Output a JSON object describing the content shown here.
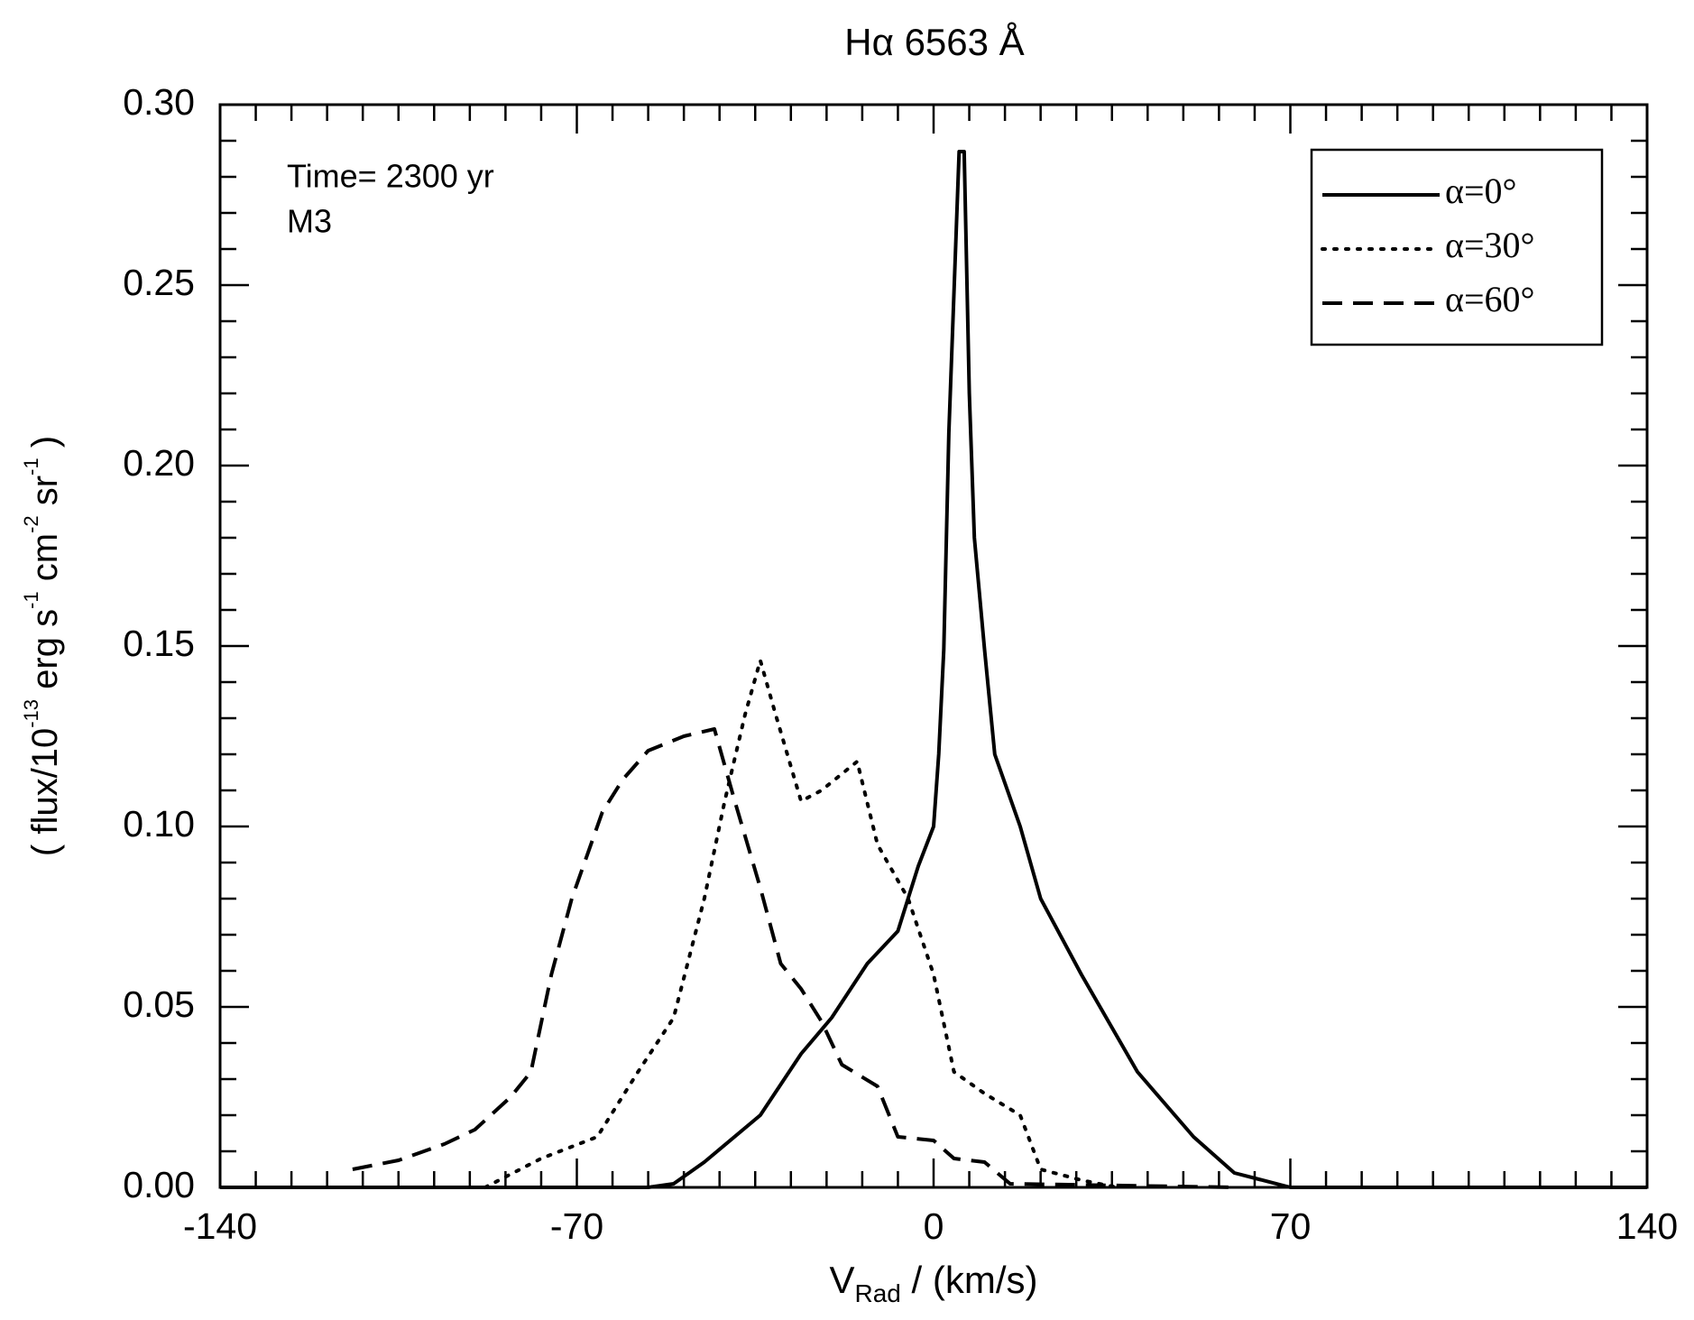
{
  "chart_data": {
    "type": "line",
    "title": "Hα 6563 Å",
    "xlabel": [
      "V",
      "Rad",
      " / (km/s)"
    ],
    "ylabel": [
      "( flux/10",
      "-13",
      " erg s",
      "-1",
      " cm",
      "-2",
      " sr",
      "-1",
      "  )"
    ],
    "annotations": [
      "Time= 2300 yr",
      "M3"
    ],
    "xlim": [
      -140,
      140
    ],
    "ylim": [
      0,
      0.3
    ],
    "xticks": [
      -140,
      -70,
      0,
      70,
      140
    ],
    "yticks": [
      {
        "value": 0,
        "label": "0.00"
      },
      {
        "value": 0.05,
        "label": "0.05"
      },
      {
        "value": 0.1,
        "label": "0.10"
      },
      {
        "value": 0.15,
        "label": "0.15"
      },
      {
        "value": 0.2,
        "label": "0.20"
      },
      {
        "value": 0.25,
        "label": "0.25"
      },
      {
        "value": 0.3,
        "label": "0.30"
      }
    ],
    "xminorticks": [
      -133,
      -126,
      -119,
      -112,
      -105,
      -98,
      -91,
      -84,
      -77,
      -63,
      -56,
      -49,
      -42,
      -35,
      -28,
      -21,
      -14,
      -7,
      7,
      14,
      21,
      28,
      35,
      42,
      49,
      56,
      63,
      77,
      84,
      91,
      98,
      105,
      112,
      119,
      126,
      133
    ],
    "yminorticks": [
      0.01,
      0.02,
      0.03,
      0.04,
      0.06,
      0.07,
      0.08,
      0.09,
      0.11,
      0.12,
      0.13,
      0.14,
      0.16,
      0.17,
      0.18,
      0.19,
      0.21,
      0.22,
      0.23,
      0.24,
      0.26,
      0.27,
      0.28,
      0.29
    ],
    "legend": "upper right",
    "series": [
      {
        "name": "α=0°",
        "color": "#000000",
        "linestyle": "solid",
        "x": [
          -140,
          -56,
          -51,
          -45,
          -34,
          -26,
          -20,
          -13,
          -7,
          -3,
          0,
          1,
          2,
          3,
          5,
          6,
          7,
          8,
          10,
          12,
          17,
          21,
          29,
          40,
          51,
          59,
          70,
          140
        ],
        "values": [
          0,
          0,
          0.001,
          0.007,
          0.02,
          0.037,
          0.047,
          0.062,
          0.071,
          0.089,
          0.1,
          0.12,
          0.149,
          0.209,
          0.287,
          0.287,
          0.22,
          0.18,
          0.149,
          0.12,
          0.1,
          0.08,
          0.059,
          0.032,
          0.014,
          0.004,
          0,
          0
        ]
      },
      {
        "name": "α=30°",
        "color": "#000000",
        "linestyle": "dotted",
        "x": [
          -88,
          -77,
          -66,
          -58,
          -51,
          -45,
          -41,
          -37,
          -34,
          -31,
          -26,
          -22,
          -15,
          -11,
          -5,
          0,
          4,
          10,
          17,
          21,
          29,
          36
        ],
        "values": [
          0,
          0.008,
          0.014,
          0.032,
          0.047,
          0.08,
          0.107,
          0.131,
          0.146,
          0.131,
          0.107,
          0.11,
          0.118,
          0.095,
          0.08,
          0.059,
          0.032,
          0.026,
          0.02,
          0.005,
          0.002,
          0
        ]
      },
      {
        "name": "α=60°",
        "color": "#000000",
        "linestyle": "dashed",
        "x": [
          -114,
          -105,
          -96,
          -90,
          -83,
          -79,
          -75,
          -71,
          -65,
          -61,
          -56,
          -49,
          -43,
          -39,
          -34,
          -30,
          -26,
          -22,
          -18,
          -11,
          -7,
          0,
          4,
          10,
          15,
          59
        ],
        "values": [
          0.005,
          0.0075,
          0.012,
          0.016,
          0.025,
          0.032,
          0.059,
          0.08,
          0.104,
          0.113,
          0.121,
          0.125,
          0.127,
          0.107,
          0.083,
          0.062,
          0.055,
          0.046,
          0.034,
          0.028,
          0.014,
          0.013,
          0.008,
          0.007,
          0.001,
          0
        ]
      }
    ]
  }
}
